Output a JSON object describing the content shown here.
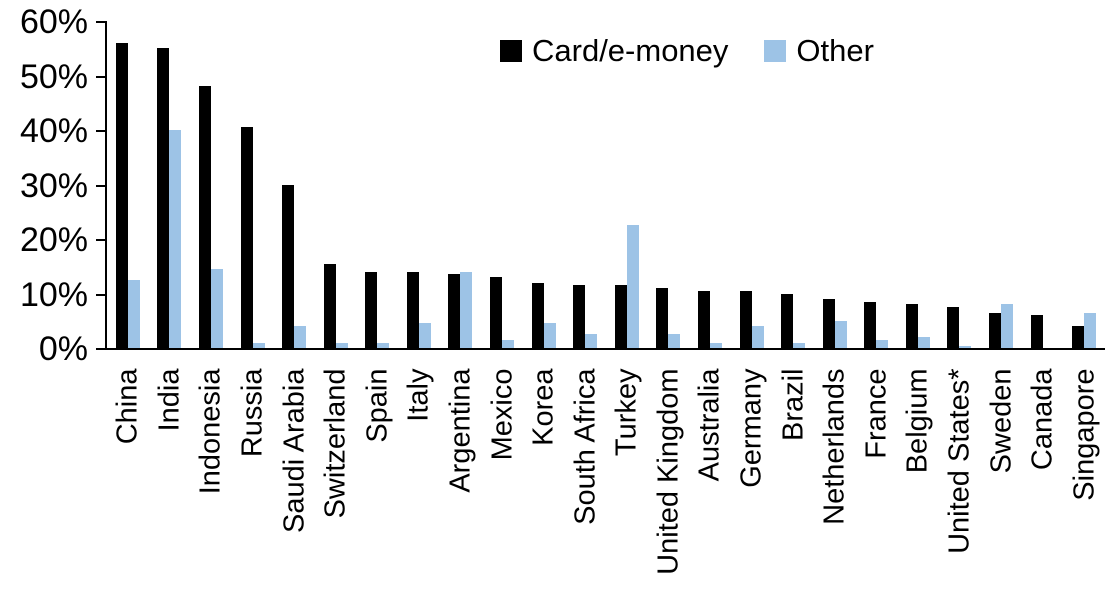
{
  "chart_data": {
    "type": "bar",
    "title": "",
    "xlabel": "",
    "ylabel": "",
    "ylim": [
      0,
      60
    ],
    "grid": false,
    "legend_position": "top-center",
    "ytick_labels": [
      "0%",
      "10%",
      "20%",
      "30%",
      "40%",
      "50%",
      "60%"
    ],
    "categories": [
      "China",
      "India",
      "Indonesia",
      "Russia",
      "Saudi Arabia",
      "Switzerland",
      "Spain",
      "Italy",
      "Argentina",
      "Mexico",
      "Korea",
      "South Africa",
      "Turkey",
      "United Kingdom",
      "Australia",
      "Germany",
      "Brazil",
      "Netherlands",
      "France",
      "Belgium",
      "United States*",
      "Sweden",
      "Canada",
      "Singapore"
    ],
    "series": [
      {
        "name": "Card/e-money",
        "color": "#000000",
        "values": [
          56,
          55,
          48,
          40.5,
          30,
          15.5,
          14,
          14,
          13.5,
          13,
          12,
          11.5,
          11.5,
          11,
          10.5,
          10.5,
          10,
          9,
          8.5,
          8,
          7.5,
          6.5,
          6,
          4
        ]
      },
      {
        "name": "Other",
        "color": "#9DC3E6",
        "values": [
          12.5,
          40,
          14.5,
          1,
          4,
          1,
          1,
          4.5,
          14,
          1.5,
          4.5,
          2.5,
          22.5,
          2.5,
          1,
          4,
          1,
          5,
          1.5,
          2,
          0.3,
          8,
          0,
          6.5
        ]
      }
    ]
  }
}
